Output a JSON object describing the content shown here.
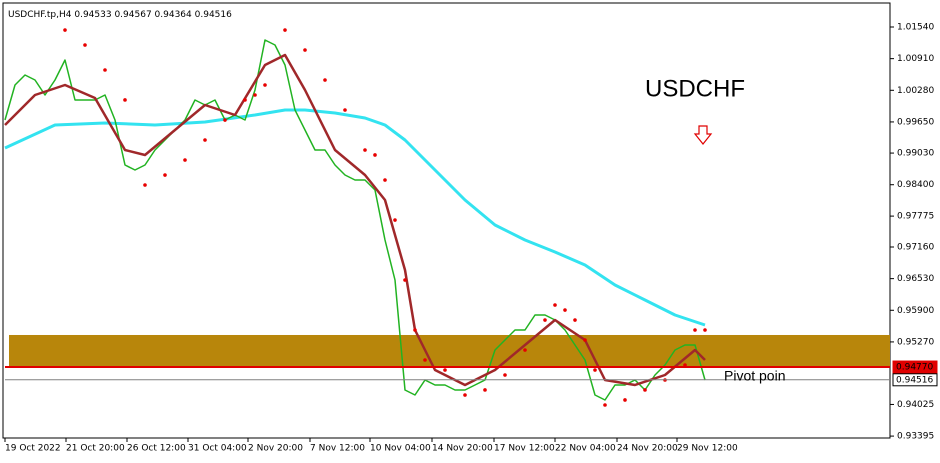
{
  "chart_data": {
    "type": "line",
    "header": "USDCHF.tp,H4",
    "ohlc": [
      0.94533,
      0.94567,
      0.94364,
      0.94516
    ],
    "title": "USDCHF",
    "annotation": "Pivot poin",
    "xlim": [
      0,
      88.5
    ],
    "ylim": [
      0.93357,
      1.02018
    ],
    "xticks": [
      {
        "value": 0,
        "label": "19 Oct 2022"
      },
      {
        "value": 6.1,
        "label": "21 Oct 20:00"
      },
      {
        "value": 12.2,
        "label": "26 Oct 12:00"
      },
      {
        "value": 18.3,
        "label": "31 Oct 04:00"
      },
      {
        "value": 24.3,
        "label": "2 Nov 20:00"
      },
      {
        "value": 30.5,
        "label": "7 Nov 12:00"
      },
      {
        "value": 36.5,
        "label": "10 Nov 04:00"
      },
      {
        "value": 42.7,
        "label": "14 Nov 20:00"
      },
      {
        "value": 48.9,
        "label": "17 Nov 12:00"
      },
      {
        "value": 55,
        "label": "22 Nov 04:00"
      },
      {
        "value": 61.2,
        "label": "24 Nov 20:00"
      },
      {
        "value": 67.2,
        "label": "29 Nov 12:00"
      }
    ],
    "yticks": [
      {
        "value": 1.0154,
        "label": "1.01540"
      },
      {
        "value": 1.0091,
        "label": "1.00910"
      },
      {
        "value": 1.0028,
        "label": "1.00280"
      },
      {
        "value": 0.9965,
        "label": "0.99650"
      },
      {
        "value": 0.9903,
        "label": "0.99030"
      },
      {
        "value": 0.984,
        "label": "0.98400"
      },
      0.97775,
      {
        "value": 0.9716,
        "label": "0.97160"
      },
      {
        "value": 0.9653,
        "label": "0.96530"
      },
      {
        "value": 0.959,
        "label": "0.95900"
      },
      {
        "value": 0.9527,
        "label": "0.95270"
      },
      0.94025,
      0.93395
    ],
    "zone": {
      "range": [
        0.9477,
        0.95408
      ],
      "color": "#b8860b"
    },
    "levels": [
      {
        "value": 0.9477,
        "label": "0.94770",
        "color": "#e00000"
      },
      {
        "value": 0.94516,
        "label": "0.94516",
        "color": "#808080"
      }
    ],
    "series": [
      {
        "style": "line",
        "color": "#33e3f0",
        "width": 3,
        "x": [
          0,
          5,
          10,
          15,
          20,
          25,
          28,
          30,
          33,
          36,
          38,
          40,
          43,
          46,
          49,
          52,
          55,
          58,
          61,
          64,
          67,
          70
        ],
        "values": [
          0.99131,
          0.99589,
          0.99629,
          0.99589,
          0.99649,
          0.99788,
          0.99887,
          0.99887,
          0.99828,
          0.99728,
          0.99589,
          0.9929,
          0.98693,
          0.98096,
          0.97598,
          0.97299,
          0.9706,
          0.96801,
          0.96403,
          0.96105,
          0.95806,
          0.95607
        ]
      },
      {
        "style": "line",
        "color": "#22b322",
        "width": 1.5,
        "x": [
          0,
          1,
          2,
          3,
          4,
          5,
          6,
          7,
          8,
          9,
          10,
          11,
          12,
          13,
          14,
          15,
          16,
          17,
          18,
          19,
          20,
          21,
          22,
          23,
          24,
          25,
          26,
          27,
          28,
          29,
          30,
          31,
          32,
          33,
          34,
          35,
          36,
          37,
          38,
          39,
          40,
          41,
          42,
          43,
          44,
          45,
          46,
          47,
          48,
          49,
          50,
          51,
          52,
          53,
          54,
          55,
          56,
          57,
          58,
          59,
          60,
          61,
          62,
          63,
          64,
          65,
          66,
          67,
          68,
          69,
          70
        ],
        "values": [
          0.99688,
          1.00385,
          1.00584,
          1.00485,
          1.00186,
          1.00485,
          1.00883,
          1.00087,
          1.00087,
          1.00087,
          1.00186,
          0.99688,
          0.98792,
          0.98693,
          0.98792,
          0.99091,
          0.9929,
          0.99489,
          0.99688,
          1.00087,
          0.99987,
          1.00087,
          0.99688,
          0.99788,
          0.99688,
          1.00286,
          1.01281,
          1.01182,
          1.00783,
          0.99887,
          0.99489,
          0.99091,
          0.99091,
          0.98792,
          0.98593,
          0.98494,
          0.98494,
          0.98295,
          0.97299,
          0.96503,
          0.94313,
          0.94213,
          0.94512,
          0.94412,
          0.94412,
          0.94313,
          0.94313,
          0.94412,
          0.94512,
          0.95109,
          0.95308,
          0.95507,
          0.95507,
          0.95806,
          0.95806,
          0.95706,
          0.95507,
          0.95209,
          0.9491,
          0.94213,
          0.94114,
          0.94412,
          0.94412,
          0.94512,
          0.94313,
          0.94611,
          0.9481,
          0.95109,
          0.95209,
          0.95209,
          0.94512
        ]
      },
      {
        "style": "line",
        "color": "#a0282a",
        "width": 2.5,
        "x": [
          0,
          3,
          6,
          9,
          12,
          14,
          17,
          20,
          23,
          26,
          28,
          30,
          33,
          36,
          38,
          40,
          41,
          43,
          46,
          49,
          52,
          55,
          58,
          60,
          63,
          66,
          69,
          70
        ],
        "values": [
          0.99589,
          1.00186,
          1.00385,
          1.00126,
          0.99091,
          0.98992,
          0.99489,
          0.99987,
          0.99788,
          1.00783,
          1.00983,
          1.00286,
          0.99091,
          0.98593,
          0.98096,
          0.96702,
          0.95507,
          0.94711,
          0.94412,
          0.94711,
          0.95209,
          0.95706,
          0.95308,
          0.94512,
          0.94412,
          0.94611,
          0.95109,
          0.9491
        ]
      },
      {
        "style": "dots",
        "color": "#e80000",
        "x": [
          6,
          8,
          10,
          12,
          14,
          16,
          18,
          20,
          22,
          24,
          25,
          26,
          28,
          30,
          32,
          34,
          36,
          37,
          38,
          39,
          40,
          41,
          42,
          44,
          46,
          48,
          50,
          52,
          54,
          55,
          56,
          57,
          58,
          59,
          60,
          62,
          64,
          66,
          68,
          69,
          70
        ],
        "values": [
          1.0148,
          1.01182,
          1.00684,
          1.00087,
          0.98394,
          0.98593,
          0.98892,
          0.9929,
          0.99688,
          1.00087,
          1.00186,
          1.00385,
          1.0148,
          1.01082,
          1.00485,
          0.99887,
          0.99091,
          0.98992,
          0.98494,
          0.97697,
          0.96503,
          0.95507,
          0.9491,
          0.94711,
          0.94213,
          0.94313,
          0.94611,
          0.95109,
          0.95706,
          0.96005,
          0.95905,
          0.95706,
          0.95308,
          0.94711,
          0.94014,
          0.94114,
          0.94313,
          0.94512,
          0.9481,
          0.95507,
          0.95507
        ]
      }
    ]
  }
}
